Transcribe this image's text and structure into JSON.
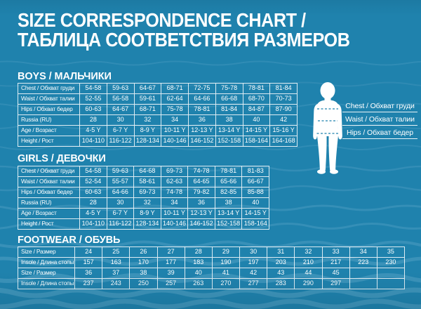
{
  "title": {
    "line1": "SIZE CORRESPONDENCE CHART /",
    "line2": "ТАБЛИЦА СООТВЕТСТВИЯ РАЗМЕРОВ"
  },
  "colors": {
    "background": "#1F82AD",
    "wave_light": "#4C9CC1",
    "text": "#FFFFFF",
    "table_border": "#FFFFFF",
    "figure_fill": "#FFFFFF"
  },
  "boys": {
    "heading": "BOYS / МАЛЬЧИКИ",
    "rows": [
      {
        "label": "Chest / Обхват груди",
        "values": [
          "54-58",
          "59-63",
          "64-67",
          "68-71",
          "72-75",
          "75-78",
          "78-81",
          "81-84"
        ]
      },
      {
        "label": "Waist / Обхват талии",
        "values": [
          "52-55",
          "56-58",
          "59-61",
          "62-64",
          "64-66",
          "66-68",
          "68-70",
          "70-73"
        ]
      },
      {
        "label": "Hips / Обхват бедер",
        "values": [
          "60-63",
          "64-67",
          "68-71",
          "75-78",
          "78-81",
          "81-84",
          "84-87",
          "87-90"
        ]
      },
      {
        "label": "Russia (RU)",
        "values": [
          "28",
          "30",
          "32",
          "34",
          "36",
          "38",
          "40",
          "42"
        ]
      },
      {
        "label": "Age / Возраст",
        "values": [
          "4-5 Y",
          "6-7 Y",
          "8-9 Y",
          "10-11 Y",
          "12-13 Y",
          "13-14 Y",
          "14-15 Y",
          "15-16 Y"
        ]
      },
      {
        "label": "Height / Рост",
        "values": [
          "104-110",
          "116-122",
          "128-134",
          "140-146",
          "146-152",
          "152-158",
          "158-164",
          "164-168"
        ]
      }
    ]
  },
  "girls": {
    "heading": "GIRLS / ДЕВОЧКИ",
    "rows": [
      {
        "label": "Chest / Обхват груди",
        "values": [
          "54-58",
          "59-63",
          "64-68",
          "69-73",
          "74-78",
          "78-81",
          "81-83"
        ]
      },
      {
        "label": "Waist / Обхват талии",
        "values": [
          "52-54",
          "55-57",
          "58-61",
          "62-63",
          "64-65",
          "65-66",
          "66-67"
        ]
      },
      {
        "label": "Hips / Обхват бедер",
        "values": [
          "60-63",
          "64-66",
          "69-73",
          "74-78",
          "79-82",
          "82-85",
          "85-88"
        ]
      },
      {
        "label": "Russia (RU)",
        "values": [
          "28",
          "30",
          "32",
          "34",
          "36",
          "38",
          "40"
        ]
      },
      {
        "label": "Age / Возраст",
        "values": [
          "4-5 Y",
          "6-7 Y",
          "8-9 Y",
          "10-11 Y",
          "12-13 Y",
          "13-14 Y",
          "14-15 Y"
        ]
      },
      {
        "label": "Height / Рост",
        "values": [
          "104-110",
          "116-122",
          "128-134",
          "140-146",
          "146-152",
          "152-158",
          "158-164"
        ]
      }
    ]
  },
  "footwear": {
    "heading": "FOOTWEAR / ОБУВЬ",
    "rows": [
      {
        "label": "Size / Размер",
        "values": [
          "24",
          "25",
          "26",
          "27",
          "28",
          "29",
          "30",
          "31",
          "32",
          "33",
          "34",
          "35"
        ]
      },
      {
        "label": "Insole / Длина стопы",
        "values": [
          "157",
          "163",
          "170",
          "177",
          "183",
          "190",
          "197",
          "203",
          "210",
          "217",
          "223",
          "230"
        ]
      },
      {
        "label": "Size / Размер",
        "values": [
          "36",
          "37",
          "38",
          "39",
          "40",
          "41",
          "42",
          "43",
          "44",
          "45",
          "",
          ""
        ]
      },
      {
        "label": "Insole / Длина стопы",
        "values": [
          "237",
          "243",
          "250",
          "257",
          "263",
          "270",
          "277",
          "283",
          "290",
          "297",
          "",
          ""
        ]
      }
    ]
  },
  "figure_labels": [
    "Chest / Обхват груди",
    "Waist / Обхват талии",
    "Hips / Обхват бедер"
  ]
}
